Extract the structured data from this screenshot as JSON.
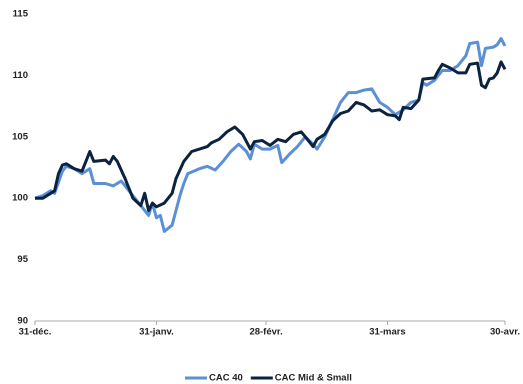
{
  "chart_data": {
    "type": "line",
    "xlim": [
      0,
      120
    ],
    "xticks": [
      {
        "value": 0,
        "label": "31-déc."
      },
      {
        "value": 31,
        "label": "31-janv."
      },
      {
        "value": 59,
        "label": "28-févr."
      },
      {
        "value": 90,
        "label": "31-mars"
      },
      {
        "value": 120,
        "label": "30-avr."
      }
    ],
    "ylim": [
      90,
      115
    ],
    "yticks": [
      90,
      95,
      100,
      105,
      110,
      115
    ],
    "grid": false,
    "legend": "bottom",
    "series": [
      {
        "name": "CAC 40",
        "color": "#5b8fd6",
        "x": [
          0,
          2,
          4,
          5,
          7,
          8,
          10,
          12,
          14,
          15,
          18,
          20,
          22,
          24,
          27,
          29,
          30,
          31,
          32,
          33,
          35,
          37,
          38,
          39,
          42,
          44,
          46,
          48,
          50,
          52,
          54,
          55,
          56,
          58,
          60,
          62,
          63,
          65,
          67,
          69,
          71,
          72,
          74,
          76,
          78,
          80,
          82,
          84,
          86,
          88,
          90,
          92,
          94,
          96,
          98,
          99,
          100,
          102,
          104,
          106,
          108,
          110,
          111,
          113,
          114,
          115,
          117,
          118,
          119,
          120
        ],
        "values": [
          100,
          100.2,
          100.6,
          100.4,
          102.2,
          102.6,
          102.4,
          102,
          102.4,
          101.2,
          101.2,
          101,
          101.4,
          100.6,
          99.4,
          98.6,
          99.6,
          98.4,
          98.6,
          97.3,
          97.8,
          100.2,
          101.2,
          102,
          102.4,
          102.6,
          102.3,
          103,
          103.8,
          104.4,
          103.8,
          103.2,
          104.4,
          104,
          104,
          104.3,
          102.9,
          103.6,
          104.2,
          105,
          104.4,
          104,
          105,
          106.4,
          107.8,
          108.6,
          108.6,
          108.8,
          108.9,
          107.8,
          107.4,
          106.8,
          107.2,
          107.8,
          108,
          109.4,
          109.2,
          109.6,
          110.4,
          110.4,
          110.8,
          111.6,
          112.6,
          112.7,
          110.8,
          112.2,
          112.3,
          112.5,
          113,
          112.4
        ]
      },
      {
        "name": "CAC Mid & Small",
        "color": "#0b2240",
        "x": [
          0,
          2,
          4,
          5,
          6,
          7,
          8,
          10,
          12,
          13,
          14,
          15,
          18,
          19,
          20,
          21,
          23,
          25,
          27,
          28,
          29,
          30,
          31,
          33,
          35,
          36,
          38,
          40,
          42,
          44,
          45,
          47,
          49,
          51,
          53,
          55,
          56,
          58,
          60,
          62,
          64,
          66,
          68,
          69,
          71,
          72,
          74,
          76,
          78,
          80,
          82,
          84,
          86,
          88,
          90,
          92,
          93,
          94,
          96,
          98,
          99,
          102,
          103,
          104,
          106,
          108,
          110,
          111,
          113,
          114,
          115,
          116,
          117,
          118,
          119,
          120
        ],
        "values": [
          100,
          100,
          100.4,
          100.6,
          102,
          102.7,
          102.8,
          102.4,
          102.2,
          103,
          103.8,
          103,
          103.1,
          102.8,
          103.4,
          103,
          101.6,
          100,
          99.4,
          100.4,
          99,
          99.6,
          99.3,
          99.6,
          100.4,
          101.6,
          103,
          103.8,
          104,
          104.2,
          104.5,
          104.8,
          105.4,
          105.8,
          105.2,
          104,
          104.6,
          104.7,
          104.3,
          104.8,
          104.6,
          105.2,
          105.4,
          105,
          104.2,
          104.8,
          105.2,
          106.3,
          106.9,
          107.1,
          107.8,
          107.6,
          107.1,
          107.2,
          106.8,
          106.7,
          106.4,
          107.4,
          107.3,
          108,
          109.7,
          109.8,
          110.4,
          110.9,
          110.6,
          110.2,
          110.2,
          110.9,
          111,
          109.2,
          109,
          109.7,
          109.8,
          110.2,
          111.1,
          110.5
        ]
      }
    ]
  }
}
